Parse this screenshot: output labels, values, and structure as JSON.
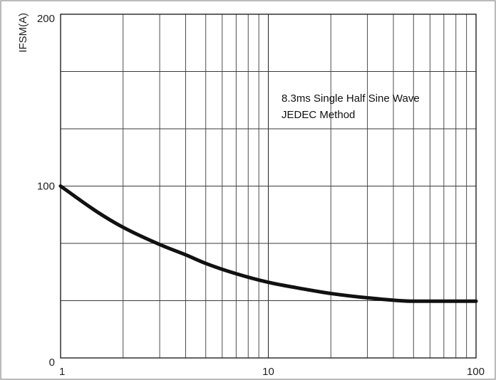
{
  "chart_data": {
    "type": "line",
    "x_scale": "log",
    "y_scale": "linear",
    "xlim": [
      1,
      100
    ],
    "ylim": [
      0,
      200
    ],
    "x_ticks": [
      1,
      10,
      100
    ],
    "x_tick_labels": [
      "1",
      "10",
      "100"
    ],
    "y_ticks": [
      0,
      100,
      200
    ],
    "y_tick_labels": [
      "0",
      "100",
      "200"
    ],
    "xlabel": "",
    "ylabel": "IFSM(A)",
    "grid": true,
    "annotation": [
      "8.3ms Single Half Sine Wave",
      "JEDEC Method"
    ],
    "series": [
      {
        "color": "#111111",
        "x": [
          1,
          1.5,
          2,
          3,
          4,
          5,
          7,
          10,
          15,
          20,
          30,
          50,
          70,
          100
        ],
        "y": [
          100,
          85,
          76,
          66,
          60,
          55,
          49,
          44,
          40,
          37.5,
          35,
          33,
          33,
          33
        ]
      }
    ]
  }
}
